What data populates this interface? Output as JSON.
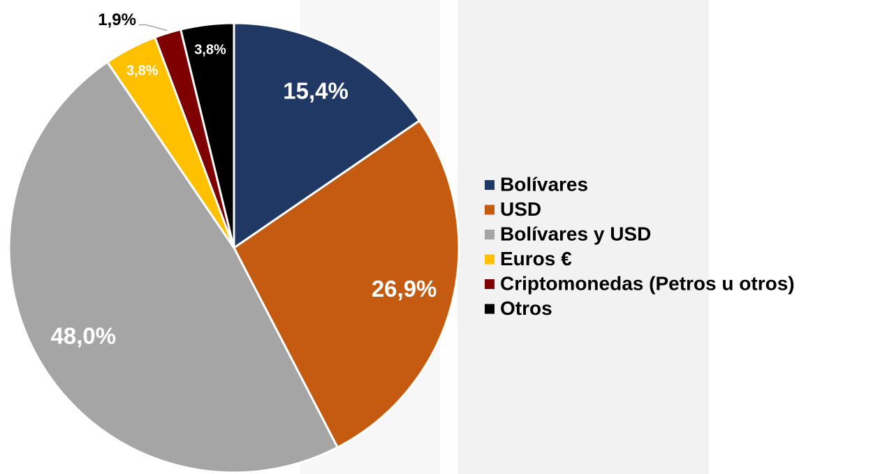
{
  "chart_data": {
    "type": "pie",
    "categories": [
      "Bolívares",
      "USD",
      "Bolívares y USD",
      "Euros €",
      "Criptomonedas (Petros u otros)",
      "Otros"
    ],
    "values": [
      15.4,
      26.9,
      48.0,
      3.8,
      1.9,
      3.8
    ],
    "value_labels": [
      "15,4%",
      "26,9%",
      "48,0%",
      "3,8%",
      "1,9%",
      "3,8%"
    ],
    "colors": [
      "#1f3864",
      "#c55a11",
      "#a5a5a5",
      "#ffc000",
      "#7f0000",
      "#000000"
    ]
  }
}
